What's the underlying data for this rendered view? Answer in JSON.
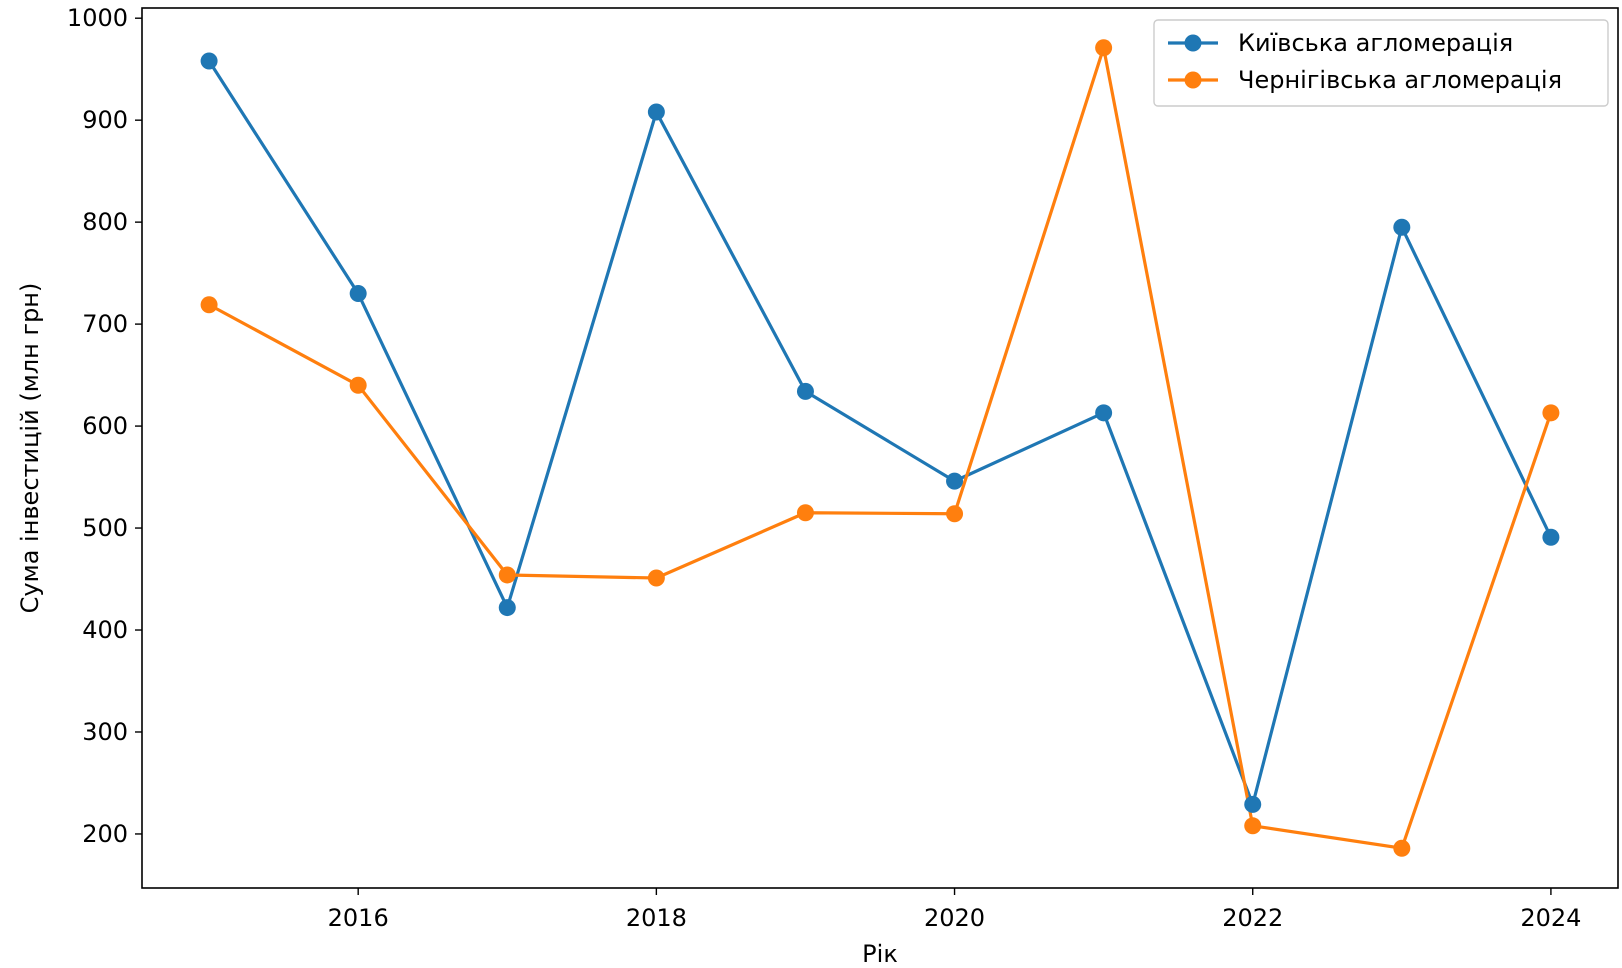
{
  "chart_data": {
    "type": "line",
    "title": "",
    "xlabel": "Рік",
    "ylabel": "Сума інвестицій (млн грн)",
    "x": [
      2015,
      2016,
      2017,
      2018,
      2019,
      2020,
      2021,
      2022,
      2023,
      2024
    ],
    "x_ticks": [
      2016,
      2018,
      2020,
      2022,
      2024
    ],
    "y_ticks": [
      200,
      300,
      400,
      500,
      600,
      700,
      800,
      900,
      1000
    ],
    "xlim": [
      2014.55,
      2024.45
    ],
    "ylim": [
      147,
      1010
    ],
    "grid": false,
    "legend_position": "top-right",
    "series": [
      {
        "name": "Київська агломерація",
        "color": "#1f77b4",
        "marker": "circle",
        "values": [
          958,
          730,
          422,
          908,
          634,
          546,
          613,
          229,
          795,
          491
        ]
      },
      {
        "name": "Чернігівська агломерація",
        "color": "#ff7f0e",
        "marker": "circle",
        "values": [
          719,
          640,
          454,
          451,
          515,
          514,
          971,
          208,
          186,
          613
        ]
      }
    ]
  }
}
